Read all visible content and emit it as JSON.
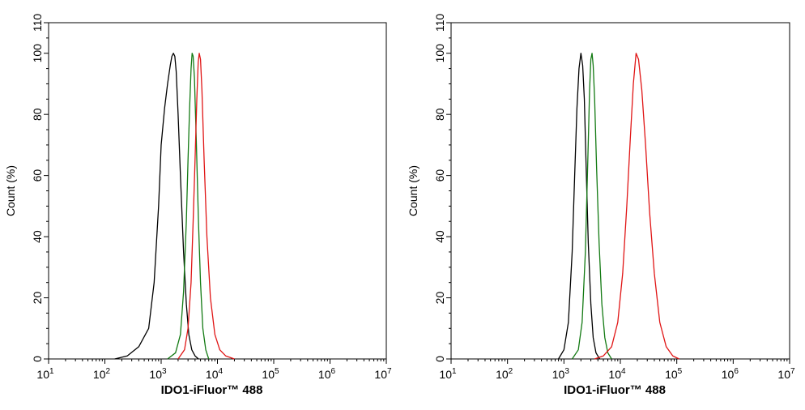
{
  "chart_data": [
    {
      "type": "line",
      "xscale": "log",
      "xlim": [
        10,
        10000000
      ],
      "ylim": [
        0,
        110
      ],
      "xlabel": "IDO1-iFluor™ 488",
      "ylabel": "Count  (%)",
      "x_ticks": [
        {
          "base": "10",
          "exp": "1"
        },
        {
          "base": "10",
          "exp": "2"
        },
        {
          "base": "10",
          "exp": "3"
        },
        {
          "base": "10",
          "exp": "4"
        },
        {
          "base": "10",
          "exp": "5"
        },
        {
          "base": "10",
          "exp": "6"
        },
        {
          "base": "10",
          "exp": "7"
        }
      ],
      "y_ticks": [
        "0",
        "20",
        "40",
        "60",
        "80",
        "100",
        "110"
      ],
      "series": [
        {
          "name": "black",
          "color": "#000000",
          "x": [
            150,
            250,
            400,
            600,
            750,
            900,
            1000,
            1150,
            1300,
            1450,
            1550,
            1650,
            1750,
            1850,
            2000,
            2200,
            2500,
            2800,
            3100,
            3500,
            4000,
            4600
          ],
          "y": [
            0,
            1,
            4,
            10,
            25,
            50,
            70,
            82,
            90,
            96,
            99,
            100,
            99,
            94,
            80,
            60,
            35,
            18,
            8,
            3,
            1,
            0
          ]
        },
        {
          "name": "green",
          "color": "#137a13",
          "x": [
            1300,
            1800,
            2200,
            2500,
            2800,
            3000,
            3200,
            3400,
            3550,
            3700,
            3900,
            4200,
            4600,
            5000,
            5500,
            6200,
            7000
          ],
          "y": [
            0,
            2,
            8,
            22,
            45,
            65,
            82,
            95,
            100,
            99,
            92,
            72,
            45,
            25,
            10,
            3,
            0
          ]
        },
        {
          "name": "red",
          "color": "#e01515",
          "x": [
            2000,
            2600,
            3000,
            3400,
            3700,
            4000,
            4300,
            4550,
            4750,
            5000,
            5300,
            5800,
            6500,
            7500,
            9000,
            11000,
            14000,
            20000
          ],
          "y": [
            0,
            3,
            10,
            25,
            45,
            65,
            85,
            97,
            100,
            98,
            88,
            65,
            40,
            20,
            8,
            3,
            1,
            0
          ]
        }
      ]
    },
    {
      "type": "line",
      "xscale": "log",
      "xlim": [
        10,
        10000000
      ],
      "ylim": [
        0,
        110
      ],
      "xlabel": "IDO1-iFluor™ 488",
      "ylabel": "Count  (%)",
      "x_ticks": [
        {
          "base": "10",
          "exp": "1"
        },
        {
          "base": "10",
          "exp": "2"
        },
        {
          "base": "10",
          "exp": "3"
        },
        {
          "base": "10",
          "exp": "4"
        },
        {
          "base": "10",
          "exp": "5"
        },
        {
          "base": "10",
          "exp": "6"
        },
        {
          "base": "10",
          "exp": "7"
        }
      ],
      "y_ticks": [
        "0",
        "20",
        "40",
        "60",
        "80",
        "100",
        "110"
      ],
      "series": [
        {
          "name": "black",
          "color": "#000000",
          "x": [
            800,
            1000,
            1200,
            1400,
            1550,
            1700,
            1850,
            2000,
            2150,
            2300,
            2500,
            2700,
            3000,
            3300,
            3700,
            4300
          ],
          "y": [
            0,
            3,
            12,
            35,
            60,
            82,
            95,
            100,
            96,
            85,
            60,
            38,
            18,
            7,
            2,
            0
          ]
        },
        {
          "name": "green",
          "color": "#137a13",
          "x": [
            1400,
            1800,
            2100,
            2400,
            2650,
            2850,
            3000,
            3150,
            3300,
            3500,
            3800,
            4200,
            4700,
            5300,
            6000,
            7000
          ],
          "y": [
            0,
            3,
            12,
            35,
            65,
            88,
            98,
            100,
            96,
            85,
            62,
            38,
            18,
            7,
            2,
            0
          ]
        },
        {
          "name": "red",
          "color": "#e01515",
          "x": [
            3500,
            5000,
            7000,
            9000,
            11000,
            13000,
            15000,
            17000,
            19000,
            21000,
            24000,
            28000,
            33000,
            40000,
            50000,
            65000,
            85000,
            110000
          ],
          "y": [
            0,
            1,
            4,
            12,
            28,
            50,
            72,
            90,
            100,
            98,
            88,
            70,
            48,
            28,
            12,
            4,
            1,
            0
          ]
        }
      ]
    }
  ]
}
